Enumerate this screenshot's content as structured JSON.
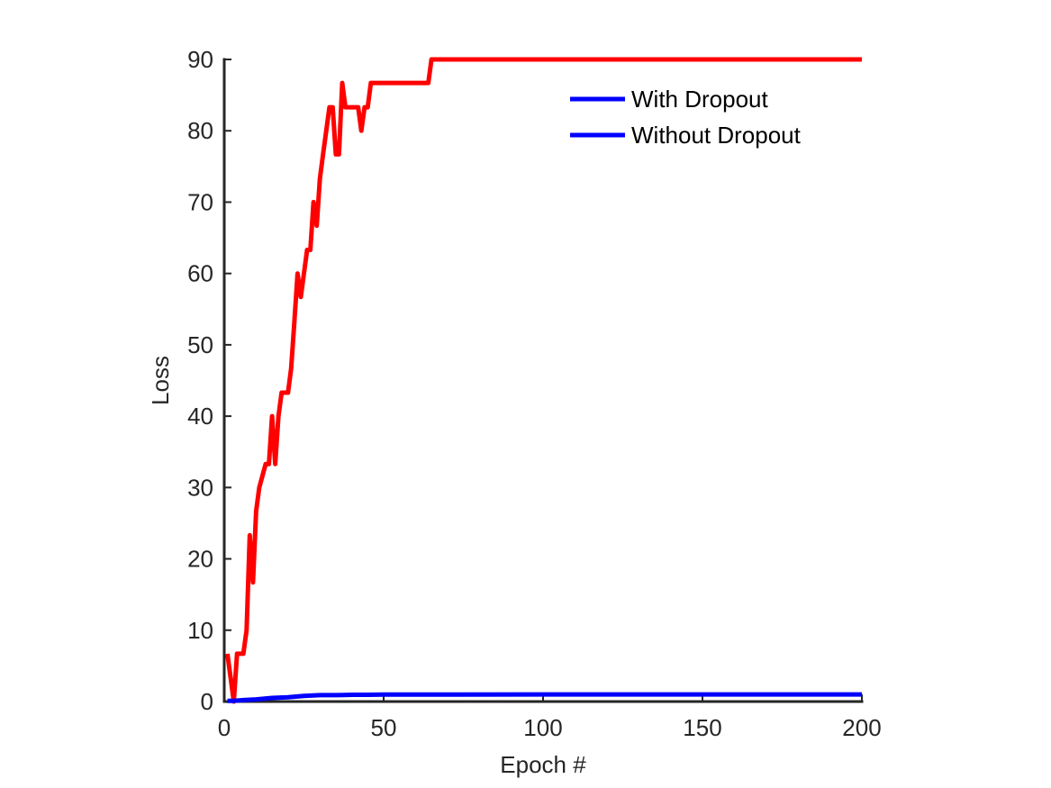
{
  "chart_data": {
    "type": "line",
    "title": "",
    "xlabel": "Epoch #",
    "ylabel": "Loss",
    "xlim": [
      0,
      200
    ],
    "ylim": [
      0,
      90
    ],
    "xticks": [
      0,
      50,
      100,
      150,
      200
    ],
    "yticks": [
      0,
      10,
      20,
      30,
      40,
      50,
      60,
      70,
      80,
      90
    ],
    "xtick_labels": [
      "0",
      "50",
      "100",
      "150",
      "200"
    ],
    "ytick_labels": [
      "0",
      "10",
      "20",
      "30",
      "40",
      "50",
      "60",
      "70",
      "80",
      "90"
    ],
    "grid": false,
    "legend_position": "top-right",
    "legend": [
      {
        "label": "With Dropout",
        "color": "#0000ff"
      },
      {
        "label": "Without Dropout",
        "color": "#0000ff"
      }
    ],
    "series": [
      {
        "color": "#ff0000",
        "x": [
          1,
          3,
          4,
          6,
          7,
          8,
          9,
          10,
          11,
          13,
          14,
          15,
          16,
          17,
          18,
          20,
          21,
          22,
          23,
          24,
          26,
          27,
          28,
          29,
          30,
          31,
          33,
          34,
          35,
          36,
          37,
          38,
          40,
          41,
          42,
          43,
          44,
          45,
          46,
          48,
          50,
          55,
          60,
          64,
          65,
          70,
          100,
          150,
          200
        ],
        "y": [
          6.7,
          0,
          6.7,
          6.7,
          10,
          23.3,
          16.7,
          26.7,
          30,
          33.3,
          33.3,
          40,
          33.3,
          40,
          43.3,
          43.3,
          46.7,
          53.3,
          60,
          56.7,
          63.3,
          63.3,
          70,
          66.7,
          73.3,
          76.7,
          83.3,
          83.3,
          76.7,
          76.7,
          86.7,
          83.3,
          83.3,
          83.3,
          83.3,
          80,
          83.3,
          83.3,
          86.7,
          86.7,
          86.7,
          86.7,
          86.7,
          86.7,
          90,
          90,
          90,
          90,
          90
        ]
      },
      {
        "color": "#0000ff",
        "x": [
          1,
          3,
          6,
          10,
          15,
          20,
          25,
          30,
          35,
          40,
          45,
          50,
          60,
          70,
          100,
          150,
          200
        ],
        "y": [
          0.1,
          0.1,
          0.2,
          0.3,
          0.5,
          0.6,
          0.8,
          0.9,
          0.9,
          0.95,
          0.95,
          0.97,
          0.98,
          0.99,
          1.0,
          1.0,
          1.0
        ]
      }
    ]
  }
}
